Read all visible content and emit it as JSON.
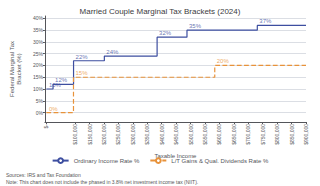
{
  "chart_data": {
    "type": "step",
    "title": "Married Couple Marginal Tax Brackets (2024)",
    "xlabel": "Taxable Income",
    "ylabel": "Federal Marginal Tax\nBracket (%)",
    "notes": [
      "Sources: IRS and Tax Foundation",
      "Note: This chart does not include the phased in 3.8% net investment income tax (NIIT)."
    ],
    "series": [
      {
        "name": "Ordinary Income Rate %",
        "color": "#3d4ea0",
        "line_style": "solid",
        "x": [
          0,
          23200,
          94300,
          201050,
          383900,
          487450,
          731200,
          900000
        ],
        "values": [
          10,
          12,
          22,
          24,
          32,
          35,
          37,
          37
        ],
        "annotations": [
          {
            "text": "10%",
            "x": 2000,
            "y": 10
          },
          {
            "text": "12%",
            "x": 23200,
            "y": 12
          },
          {
            "text": "22%",
            "x": 94300,
            "y": 22
          },
          {
            "text": "24%",
            "x": 201050,
            "y": 24
          },
          {
            "text": "32%",
            "x": 383900,
            "y": 32
          },
          {
            "text": "35%",
            "x": 487450,
            "y": 35
          },
          {
            "text": "37%",
            "x": 731200,
            "y": 37
          }
        ]
      },
      {
        "name": "L/T Gains & Qual. Dividends Rate %",
        "color": "#e8923a",
        "line_style": "dashed",
        "x": [
          0,
          94050,
          583750,
          900000
        ],
        "values": [
          0,
          15,
          20,
          20
        ],
        "annotations": [
          {
            "text": "0%",
            "x": 2000,
            "y": 0
          },
          {
            "text": "15%",
            "x": 94050,
            "y": 15
          },
          {
            "text": "20%",
            "x": 583750,
            "y": 20
          }
        ]
      }
    ],
    "xlim": [
      -5000,
      900000
    ],
    "xticks": [
      {
        "value": 0,
        "label": "$-"
      },
      {
        "value": 100000,
        "label": "$100,000"
      },
      {
        "value": 150000,
        "label": "$150,000"
      },
      {
        "value": 200000,
        "label": "$200,000"
      },
      {
        "value": 250000,
        "label": "$250,000"
      },
      {
        "value": 300000,
        "label": "$300,000"
      },
      {
        "value": 350000,
        "label": "$350,000"
      },
      {
        "value": 400000,
        "label": "$400,000"
      },
      {
        "value": 450000,
        "label": "$450,000"
      },
      {
        "value": 500000,
        "label": "$500,000"
      },
      {
        "value": 550000,
        "label": "$550,000"
      },
      {
        "value": 600000,
        "label": "$600,000"
      },
      {
        "value": 650000,
        "label": "$650,000"
      },
      {
        "value": 700000,
        "label": "$700,000"
      },
      {
        "value": 750000,
        "label": "$750,000"
      },
      {
        "value": 800000,
        "label": "$800,000"
      },
      {
        "value": 850000,
        "label": "$850,000"
      },
      {
        "value": 900000,
        "label": "$900,000"
      }
    ],
    "ylim": [
      -4,
      41
    ],
    "yticks": [
      {
        "value": 0,
        "label": "0%"
      },
      {
        "value": 5,
        "label": "5%"
      },
      {
        "value": 10,
        "label": "10%"
      },
      {
        "value": 15,
        "label": "15%"
      },
      {
        "value": 20,
        "label": "20%"
      },
      {
        "value": 25,
        "label": "25%"
      },
      {
        "value": 30,
        "label": "30%"
      },
      {
        "value": 35,
        "label": "35%"
      },
      {
        "value": 40,
        "label": "40%"
      }
    ],
    "grid": true,
    "legend": "bottom"
  }
}
